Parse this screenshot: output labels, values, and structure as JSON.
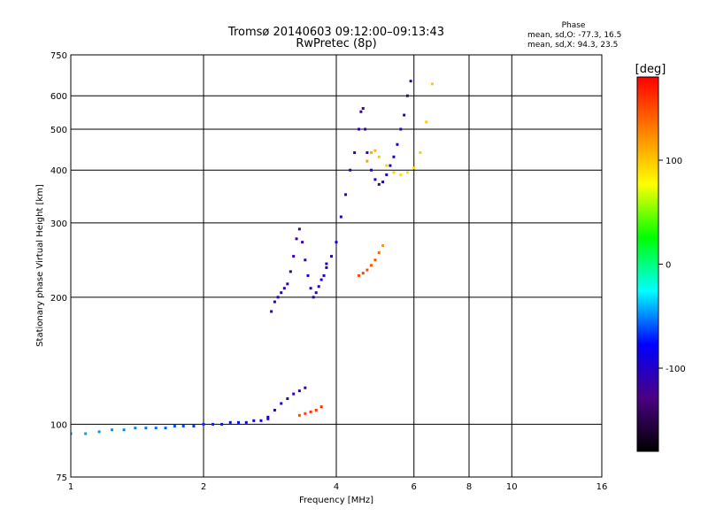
{
  "chart_data": {
    "type": "scatter",
    "title": "Tromsø 20140603 09:12:00–09:13:43",
    "subtitle": "RwPretec (8p)",
    "xlabel": "Frequency [MHz]",
    "ylabel": "Stationary phase Virtual Height [km]",
    "x_scale": "log2",
    "y_scale": "log",
    "xlim": [
      1,
      16
    ],
    "ylim": [
      75,
      750
    ],
    "x_ticks": [
      1,
      2,
      4,
      6,
      8,
      10,
      16
    ],
    "y_ticks": [
      75,
      100,
      200,
      300,
      400,
      500,
      600,
      750
    ],
    "grid": true,
    "phase_box": {
      "header": "Phase",
      "line_o": "mean, sd,O: -77.3, 16.5",
      "line_x": "mean, sd,X: 94.3, 23.5"
    },
    "colorbar": {
      "label": "[deg]",
      "range": [
        -180,
        180
      ],
      "ticks": [
        100,
        0,
        -100
      ],
      "colormap": [
        "#000000",
        "#4b0082",
        "#0000ff",
        "#00ffff",
        "#00ff00",
        "#ffff00",
        "#ff8000",
        "#ff0000"
      ]
    },
    "series": [
      {
        "x": [
          1.0,
          1.08,
          1.16,
          1.24,
          1.32,
          1.4,
          1.48,
          1.56,
          1.64,
          1.72,
          1.8,
          1.9,
          2.0,
          2.1,
          2.2,
          2.3,
          2.4,
          2.5,
          2.6,
          2.7,
          2.8
        ],
        "y": [
          95,
          95,
          96,
          97,
          97,
          98,
          98,
          98,
          98,
          99,
          99,
          99,
          100,
          100,
          100,
          101,
          101,
          101,
          102,
          102,
          103
        ],
        "phase": [
          -45,
          -45,
          -47,
          -48,
          -50,
          -50,
          -52,
          -55,
          -58,
          -60,
          -62,
          -65,
          -68,
          -70,
          -72,
          -75,
          -75,
          -78,
          -80,
          -80,
          -82
        ]
      },
      {
        "x": [
          2.8,
          2.9,
          3.0,
          3.1,
          3.2,
          3.3,
          3.4
        ],
        "y": [
          104,
          108,
          112,
          115,
          118,
          120,
          122
        ],
        "phase": [
          -95,
          -100,
          -105,
          -110,
          -110,
          -112,
          -115
        ]
      },
      {
        "x": [
          3.3,
          3.4,
          3.5,
          3.6,
          3.7
        ],
        "y": [
          105,
          106,
          107,
          108,
          110
        ],
        "phase": [
          150,
          155,
          160,
          160,
          165
        ]
      },
      {
        "x": [
          2.85,
          2.9,
          2.95,
          3.0,
          3.05,
          3.1,
          3.15,
          3.2,
          3.25,
          3.3,
          3.35,
          3.4,
          3.45,
          3.5,
          3.55,
          3.6,
          3.65,
          3.7,
          3.75,
          3.8
        ],
        "y": [
          185,
          195,
          200,
          205,
          210,
          215,
          230,
          250,
          275,
          290,
          270,
          245,
          225,
          210,
          200,
          205,
          212,
          220,
          225,
          235
        ],
        "phase": [
          -100,
          -100,
          -105,
          -110,
          -110,
          -112,
          -115,
          -115,
          -118,
          -120,
          -118,
          -115,
          -110,
          -110,
          -105,
          -100,
          -100,
          -98,
          -95,
          -95
        ]
      },
      {
        "x": [
          3.8,
          3.9,
          4.0,
          4.1,
          4.2,
          4.3,
          4.4,
          4.5,
          4.55,
          4.6,
          4.65,
          4.7,
          4.8,
          4.9,
          5.0,
          5.1,
          5.2,
          5.3,
          5.4,
          5.5,
          5.6,
          5.7,
          5.8,
          5.9
        ],
        "y": [
          240,
          250,
          270,
          310,
          350,
          400,
          440,
          500,
          550,
          560,
          500,
          440,
          400,
          380,
          370,
          375,
          390,
          410,
          430,
          460,
          500,
          540,
          600,
          650
        ],
        "phase": [
          -95,
          -95,
          -98,
          -100,
          -102,
          -105,
          -108,
          -110,
          -112,
          -112,
          -110,
          -108,
          -105,
          -105,
          -102,
          -100,
          -100,
          -98,
          -98,
          -100,
          -102,
          -105,
          -108,
          -110
        ]
      },
      {
        "x": [
          4.5,
          4.6,
          4.7,
          4.8,
          4.9,
          5.0,
          5.1
        ],
        "y": [
          225,
          228,
          232,
          238,
          245,
          255,
          265
        ],
        "phase": [
          150,
          155,
          150,
          145,
          148,
          140,
          120
        ]
      },
      {
        "x": [
          4.7,
          4.8,
          4.9,
          5.0,
          5.2,
          5.4,
          5.6,
          5.8,
          6.0,
          6.2,
          6.4,
          6.6
        ],
        "y": [
          420,
          440,
          445,
          430,
          410,
          395,
          390,
          395,
          405,
          440,
          520,
          640
        ],
        "phase": [
          115,
          110,
          105,
          100,
          95,
          95,
          90,
          90,
          92,
          95,
          98,
          100
        ]
      }
    ]
  }
}
